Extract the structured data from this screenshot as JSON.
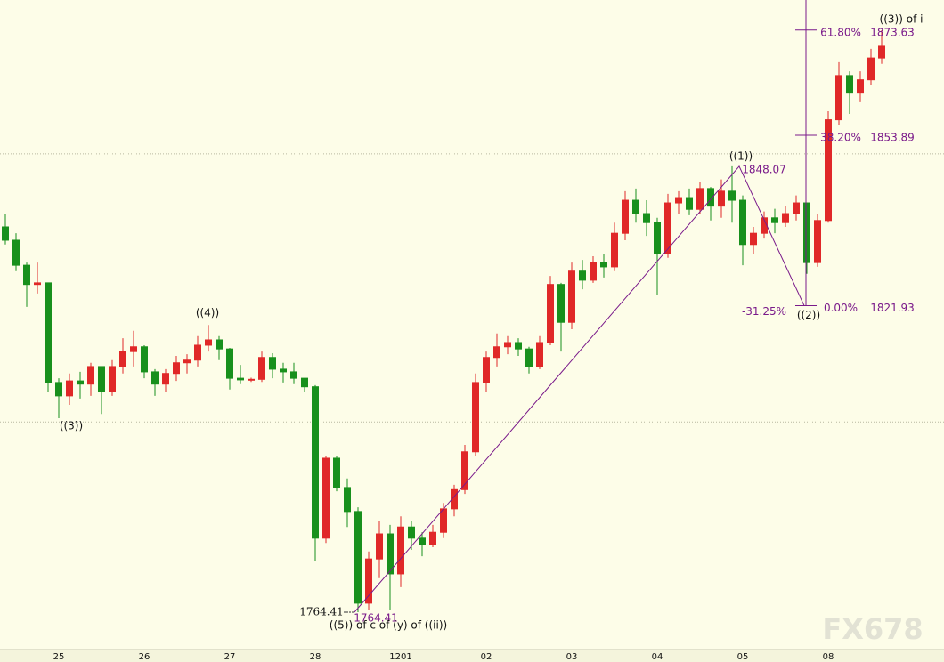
{
  "chart_data": {
    "type": "candlestick",
    "categories": [
      null,
      null,
      null,
      null,
      null,
      "25",
      null,
      null,
      null,
      null,
      null,
      null,
      null,
      "26",
      null,
      null,
      null,
      null,
      null,
      null,
      null,
      "27",
      null,
      null,
      null,
      null,
      null,
      null,
      null,
      "28",
      null,
      null,
      null,
      null,
      null,
      null,
      null,
      "1201",
      null,
      null,
      null,
      null,
      null,
      null,
      null,
      "02",
      null,
      null,
      null,
      null,
      null,
      null,
      null,
      "03",
      null,
      null,
      null,
      null,
      null,
      null,
      null,
      "04",
      null,
      null,
      null,
      null,
      null,
      null,
      null,
      "05",
      null,
      null,
      null,
      null,
      null,
      null,
      null,
      "08",
      null,
      null,
      null,
      null,
      null
    ],
    "open": [
      1836.7,
      1834.2,
      1829.5,
      1825.9,
      1826.2,
      1807.5,
      1805.0,
      1807.8,
      1807.2,
      1810.5,
      1805.8,
      1810.5,
      1813.3,
      1814.2,
      1809.5,
      1807.2,
      1809.2,
      1811.2,
      1811.7,
      1814.5,
      1815.5,
      1813.8,
      1808.3,
      1808.0,
      1808.1,
      1812.2,
      1810.0,
      1809.5,
      1808.3,
      1806.7,
      1778.3,
      1793.3,
      1787.8,
      1783.3,
      1766.1,
      1774.4,
      1779.1,
      1771.6,
      1780.4,
      1778.3,
      1777.1,
      1779.4,
      1783.8,
      1787.4,
      1794.5,
      1807.5,
      1812.2,
      1814.2,
      1815.0,
      1813.8,
      1810.5,
      1815.0,
      1825.9,
      1818.8,
      1828.4,
      1826.7,
      1830.0,
      1829.2,
      1835.5,
      1841.7,
      1839.2,
      1837.5,
      1831.7,
      1841.2,
      1842.2,
      1840.0,
      1843.9,
      1840.6,
      1843.4,
      1841.7,
      1833.4,
      1835.5,
      1838.4,
      1837.5,
      1839.2,
      1841.2,
      1830.0,
      1837.9,
      1856.8,
      1865.1,
      1861.8,
      1864.3,
      1868.4
    ],
    "high": [
      1839.2,
      1835.5,
      1830.0,
      1830.0,
      1826.2,
      1808.3,
      1809.2,
      1809.5,
      1811.2,
      1810.5,
      1811.7,
      1815.8,
      1817.2,
      1814.5,
      1810.0,
      1810.0,
      1812.5,
      1812.8,
      1816.2,
      1818.3,
      1816.2,
      1814.0,
      1810.8,
      1808.4,
      1813.3,
      1813.0,
      1811.2,
      1811.2,
      1808.3,
      1807.0,
      1793.8,
      1793.8,
      1789.5,
      1784.1,
      1775.8,
      1781.6,
      1780.8,
      1782.4,
      1781.6,
      1779.4,
      1780.8,
      1784.9,
      1788.3,
      1795.8,
      1809.2,
      1813.3,
      1816.7,
      1816.2,
      1815.8,
      1814.2,
      1816.2,
      1827.5,
      1826.2,
      1830.0,
      1830.5,
      1831.2,
      1831.7,
      1837.5,
      1843.4,
      1843.9,
      1841.7,
      1838.4,
      1842.9,
      1843.4,
      1843.9,
      1845.1,
      1844.2,
      1845.6,
      1848.07,
      1842.6,
      1836.7,
      1839.6,
      1840.1,
      1840.6,
      1842.6,
      1841.2,
      1839.2,
      1858.4,
      1867.6,
      1865.9,
      1865.9,
      1870.1,
      1873.6
    ],
    "low": [
      1833.4,
      1828.4,
      1821.7,
      1824.2,
      1805.8,
      1800.8,
      1803.3,
      1804.5,
      1805.0,
      1801.6,
      1805.0,
      1809.2,
      1810.5,
      1808.3,
      1805.0,
      1805.8,
      1807.8,
      1809.2,
      1810.5,
      1813.3,
      1811.7,
      1806.2,
      1807.2,
      1807.6,
      1807.6,
      1808.3,
      1807.5,
      1807.2,
      1805.8,
      1774.1,
      1777.4,
      1787.1,
      1780.4,
      1764.41,
      1764.9,
      1770.8,
      1764.9,
      1769.1,
      1776.1,
      1774.9,
      1776.6,
      1778.3,
      1782.4,
      1786.6,
      1793.8,
      1805.8,
      1810.5,
      1812.8,
      1812.5,
      1809.2,
      1810.0,
      1814.5,
      1813.3,
      1817.5,
      1825.0,
      1826.2,
      1827.2,
      1828.4,
      1834.2,
      1837.5,
      1835.0,
      1823.9,
      1830.9,
      1839.2,
      1838.9,
      1839.2,
      1837.9,
      1838.4,
      1837.5,
      1829.5,
      1831.7,
      1834.5,
      1835.5,
      1836.7,
      1837.9,
      1827.9,
      1829.2,
      1837.5,
      1855.9,
      1857.9,
      1860.1,
      1863.4,
      1867.3
    ],
    "close": [
      1834.2,
      1829.5,
      1825.9,
      1826.2,
      1807.5,
      1805.0,
      1807.8,
      1807.2,
      1810.5,
      1805.8,
      1810.5,
      1813.3,
      1814.2,
      1809.5,
      1807.2,
      1809.2,
      1811.2,
      1811.7,
      1814.5,
      1815.5,
      1813.8,
      1808.3,
      1808.0,
      1808.1,
      1812.2,
      1810.0,
      1809.5,
      1808.3,
      1806.7,
      1778.3,
      1793.3,
      1787.8,
      1783.3,
      1766.1,
      1774.4,
      1779.1,
      1771.6,
      1780.4,
      1778.3,
      1777.1,
      1779.4,
      1783.8,
      1787.4,
      1794.5,
      1807.5,
      1812.2,
      1814.2,
      1815.0,
      1813.8,
      1810.5,
      1815.0,
      1825.9,
      1818.8,
      1828.4,
      1826.7,
      1830.0,
      1829.2,
      1835.5,
      1841.7,
      1839.2,
      1837.5,
      1831.7,
      1841.2,
      1842.2,
      1840.0,
      1843.9,
      1840.6,
      1843.4,
      1841.7,
      1833.4,
      1835.5,
      1838.4,
      1837.5,
      1839.2,
      1841.2,
      1830.0,
      1837.9,
      1856.8,
      1865.1,
      1861.8,
      1864.3,
      1868.4,
      1870.6
    ],
    "up_color": "#e02828",
    "down_color": "#18901c",
    "ylim": [
      1757.4,
      1879.27
    ],
    "grid_levels": [
      1850.4,
      1800.1
    ],
    "waves": [
      {
        "label": "((5)) of c of (y) of ((ii))",
        "value": 1764.41
      },
      {
        "label": "((1))",
        "value": 1848.07
      },
      {
        "label": "((2))",
        "value": 1821.93
      }
    ],
    "fibonacci": [
      {
        "label": "61.80%",
        "value": 1873.63
      },
      {
        "label": "38.20%",
        "value": 1853.89
      },
      {
        "label": "0.00%",
        "value": 1821.93
      }
    ],
    "extension_label": "-31.25%",
    "annotations": [
      "((3))",
      "((4))",
      "((3)) of i"
    ],
    "fib_color": "#7a1a8a",
    "watermark": "FX678"
  }
}
